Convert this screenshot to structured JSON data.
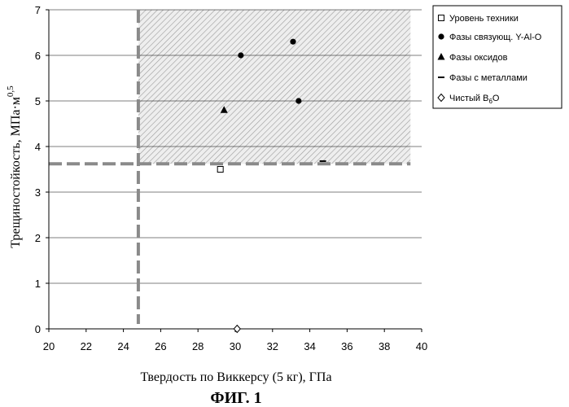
{
  "chart_data": {
    "type": "scatter",
    "xlabel": "Твердость по Виккерсу (5 кг), ГПа",
    "ylabel": "Трещиностойкость, МПа·м",
    "ylabel_exp": "0,5",
    "caption": "ФИГ. 1",
    "xlim": [
      20,
      40
    ],
    "ylim": [
      0,
      7
    ],
    "x_ticks": [
      "20",
      "22",
      "24",
      "26",
      "28",
      "30",
      "32",
      "34",
      "36",
      "38",
      "40"
    ],
    "y_ticks": [
      "0",
      "1",
      "2",
      "3",
      "4",
      "5",
      "6",
      "7"
    ],
    "grid": "horizontal",
    "legend_position": "right",
    "threshold_x": 24.8,
    "threshold_y": 3.62,
    "series": [
      {
        "name": "Уровень техники",
        "marker": "open-square",
        "points": [
          [
            29.2,
            3.5
          ]
        ]
      },
      {
        "name": "Фазы связующ. Y-Al-O",
        "marker": "filled-circle",
        "points": [
          [
            30.3,
            6.0
          ],
          [
            33.1,
            6.3
          ],
          [
            33.4,
            5.0
          ]
        ]
      },
      {
        "name": "Фазы оксидов",
        "marker": "filled-triangle",
        "points": [
          [
            29.4,
            4.8
          ]
        ]
      },
      {
        "name": "Фазы с металлами",
        "marker": "dash",
        "points": [
          [
            34.7,
            3.68
          ]
        ]
      },
      {
        "name": "Чистый B",
        "name_sub": "6",
        "name_suffix": "O",
        "marker": "open-diamond",
        "points": [
          [
            30.1,
            0.0
          ]
        ]
      }
    ],
    "colors": {
      "axis": "#000000",
      "grid": "#000000",
      "threshold": "#8a8a8a",
      "hatch": "#9a9a9a"
    }
  }
}
